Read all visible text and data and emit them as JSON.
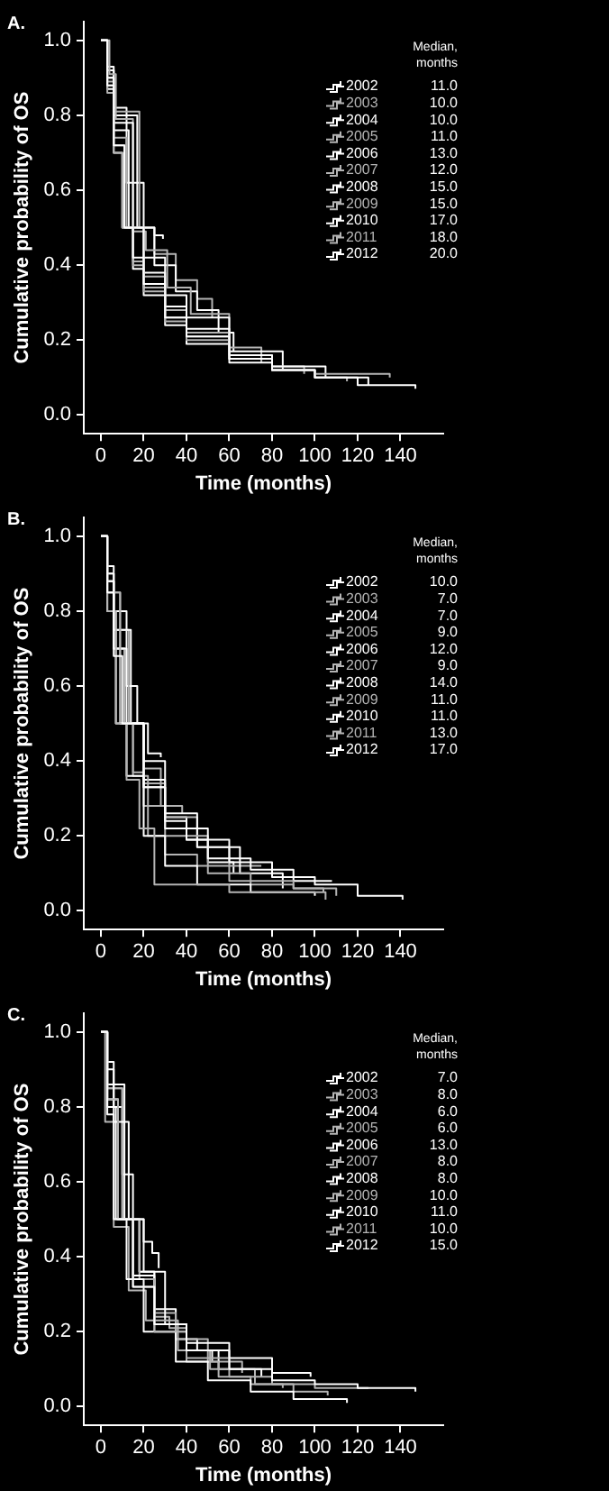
{
  "chart_data": [
    {
      "type": "step",
      "title": "A.",
      "xlabel": "Time (months)",
      "ylabel": "Cumulative probability of OS",
      "legend": "top right",
      "legend_title": "Median, months",
      "grid": false,
      "marker": "none",
      "xlim": [
        -8,
        160
      ],
      "ylim": [
        -0.05,
        1.05
      ],
      "xticks": [
        0,
        20,
        40,
        60,
        80,
        100,
        120,
        140
      ],
      "yticks": [
        {
          "value": 0,
          "label": "0.0"
        },
        {
          "value": 0.2,
          "label": "0.2"
        },
        {
          "value": 0.4,
          "label": "0.4"
        },
        {
          "value": 0.6,
          "label": "0.6"
        },
        {
          "value": 0.8,
          "label": "0.8"
        },
        {
          "value": 1,
          "label": "1.0"
        }
      ],
      "annotations": [
        "11.0",
        "10.0",
        "10.0",
        "11.0",
        "13.0",
        "12.0",
        "15.0",
        "15.0",
        "17.0",
        "18.0",
        "20.0"
      ],
      "series": [
        {
          "name": "2002",
          "color": "#ffffff",
          "x": [
            0,
            3,
            6,
            11,
            15,
            20,
            30,
            40,
            60,
            80,
            100,
            120,
            147
          ],
          "values": [
            1,
            0.88,
            0.72,
            0.5,
            0.42,
            0.35,
            0.26,
            0.21,
            0.15,
            0.12,
            0.1,
            0.08,
            0.07
          ]
        },
        {
          "name": "2003",
          "color": "#b4b4b4",
          "x": [
            0,
            3,
            6,
            10,
            15,
            20,
            30,
            40,
            60,
            80,
            100,
            135
          ],
          "values": [
            1,
            0.86,
            0.7,
            0.5,
            0.4,
            0.33,
            0.25,
            0.2,
            0.15,
            0.12,
            0.11,
            0.1
          ]
        },
        {
          "name": "2004",
          "color": "#ffffff",
          "x": [
            0,
            3,
            6,
            10,
            15,
            20,
            30,
            40,
            60,
            80,
            100,
            125
          ],
          "values": [
            1,
            0.87,
            0.7,
            0.5,
            0.39,
            0.32,
            0.24,
            0.19,
            0.14,
            0.12,
            0.1,
            0.08
          ]
        },
        {
          "name": "2005",
          "color": "#b4b4b4",
          "x": [
            0,
            3,
            6,
            11,
            15,
            20,
            30,
            40,
            60,
            80,
            100,
            115
          ],
          "values": [
            1,
            0.88,
            0.72,
            0.5,
            0.41,
            0.34,
            0.26,
            0.21,
            0.15,
            0.12,
            0.1,
            0.09
          ]
        },
        {
          "name": "2006",
          "color": "#ffffff",
          "x": [
            0,
            3,
            6,
            13,
            20,
            30,
            40,
            60,
            80,
            105
          ],
          "values": [
            1,
            0.9,
            0.76,
            0.5,
            0.38,
            0.29,
            0.23,
            0.16,
            0.13,
            0.1
          ]
        },
        {
          "name": "2007",
          "color": "#b4b4b4",
          "x": [
            0,
            3,
            6,
            12,
            20,
            30,
            40,
            60,
            80,
            95
          ],
          "values": [
            1,
            0.89,
            0.74,
            0.5,
            0.37,
            0.28,
            0.22,
            0.16,
            0.13,
            0.11
          ]
        },
        {
          "name": "2008",
          "color": "#ffffff",
          "x": [
            0,
            3,
            6,
            15,
            20,
            30,
            40,
            60,
            85
          ],
          "values": [
            1,
            0.9,
            0.78,
            0.5,
            0.42,
            0.32,
            0.26,
            0.17,
            0.12
          ]
        },
        {
          "name": "2009",
          "color": "#b4b4b4",
          "x": [
            0,
            4,
            7,
            15,
            21,
            31,
            42,
            60,
            75
          ],
          "values": [
            1,
            0.91,
            0.79,
            0.49,
            0.44,
            0.34,
            0.27,
            0.18,
            0.14
          ]
        },
        {
          "name": "2010",
          "color": "#ffffff",
          "x": [
            0,
            3,
            6,
            17,
            25,
            35,
            45,
            55,
            62
          ],
          "values": [
            1,
            0.92,
            0.8,
            0.5,
            0.4,
            0.33,
            0.28,
            0.22,
            0.17
          ]
        },
        {
          "name": "2011",
          "color": "#b4b4b4",
          "x": [
            0,
            3,
            6,
            18,
            25,
            35,
            45,
            52
          ],
          "values": [
            1,
            0.92,
            0.81,
            0.5,
            0.43,
            0.36,
            0.31,
            0.26
          ]
        },
        {
          "name": "2012",
          "color": "#ffffff",
          "x": [
            0,
            3,
            6,
            12,
            20,
            25,
            29
          ],
          "values": [
            1,
            0.93,
            0.82,
            0.62,
            0.5,
            0.48,
            0.47
          ]
        }
      ]
    },
    {
      "type": "step",
      "title": "B.",
      "xlabel": "Time (months)",
      "ylabel": "Cumulative probability of OS",
      "legend": "top right",
      "legend_title": "Median, months",
      "grid": false,
      "marker": "none",
      "xlim": [
        -8,
        160
      ],
      "ylim": [
        -0.05,
        1.05
      ],
      "xticks": [
        0,
        20,
        40,
        60,
        80,
        100,
        120,
        140
      ],
      "yticks": [
        {
          "value": 0,
          "label": "0.0"
        },
        {
          "value": 0.2,
          "label": "0.2"
        },
        {
          "value": 0.4,
          "label": "0.4"
        },
        {
          "value": 0.6,
          "label": "0.6"
        },
        {
          "value": 0.8,
          "label": "0.8"
        },
        {
          "value": 1,
          "label": "1.0"
        }
      ],
      "annotations": [
        "10.0",
        "7.0",
        "7.0",
        "9.0",
        "12.0",
        "9.0",
        "14.0",
        "11.0",
        "11.0",
        "13.0",
        "17.0"
      ],
      "series": [
        {
          "name": "2002",
          "color": "#ffffff",
          "x": [
            0,
            3,
            6,
            10,
            20,
            30,
            40,
            60,
            80,
            100,
            120,
            141
          ],
          "values": [
            1,
            0.85,
            0.68,
            0.5,
            0.33,
            0.24,
            0.19,
            0.13,
            0.09,
            0.07,
            0.04,
            0.03
          ]
        },
        {
          "name": "2003",
          "color": "#b4b4b4",
          "x": [
            0,
            3,
            7,
            12,
            18,
            25,
            40,
            60,
            80,
            105
          ],
          "values": [
            1,
            0.8,
            0.5,
            0.35,
            0.22,
            0.07,
            0.07,
            0.05,
            0.05,
            0.03
          ]
        },
        {
          "name": "2004",
          "color": "#ffffff",
          "x": [
            0,
            3,
            7,
            12,
            20,
            30,
            45,
            70,
            100
          ],
          "values": [
            1,
            0.8,
            0.5,
            0.36,
            0.2,
            0.12,
            0.07,
            0.05,
            0.04
          ]
        },
        {
          "name": "2005",
          "color": "#b4b4b4",
          "x": [
            0,
            3,
            9,
            15,
            22,
            30,
            45,
            60,
            90,
            110
          ],
          "values": [
            1,
            0.85,
            0.5,
            0.36,
            0.2,
            0.15,
            0.12,
            0.08,
            0.06,
            0.04
          ]
        },
        {
          "name": "2006",
          "color": "#ffffff",
          "x": [
            0,
            3,
            6,
            12,
            20,
            30,
            50,
            70,
            90,
            108
          ],
          "values": [
            1,
            0.88,
            0.7,
            0.5,
            0.33,
            0.22,
            0.14,
            0.11,
            0.08,
            0.08
          ]
        },
        {
          "name": "2007",
          "color": "#b4b4b4",
          "x": [
            0,
            3,
            9,
            15,
            20,
            30,
            50,
            70,
            90,
            104
          ],
          "values": [
            1,
            0.85,
            0.5,
            0.37,
            0.28,
            0.2,
            0.1,
            0.07,
            0.06,
            0.05
          ]
        },
        {
          "name": "2008",
          "color": "#ffffff",
          "x": [
            0,
            3,
            6,
            14,
            20,
            30,
            45,
            65,
            85
          ],
          "values": [
            1,
            0.9,
            0.75,
            0.5,
            0.4,
            0.26,
            0.17,
            0.1,
            0.06
          ]
        },
        {
          "name": "2009",
          "color": "#b4b4b4",
          "x": [
            0,
            3,
            6,
            11,
            20,
            30,
            45,
            60,
            75
          ],
          "values": [
            1,
            0.88,
            0.7,
            0.5,
            0.34,
            0.25,
            0.17,
            0.12,
            0.12
          ]
        },
        {
          "name": "2010",
          "color": "#ffffff",
          "x": [
            0,
            3,
            6,
            11,
            20,
            30,
            40,
            50,
            62
          ],
          "values": [
            1,
            0.88,
            0.7,
            0.5,
            0.35,
            0.25,
            0.19,
            0.13,
            0.1
          ]
        },
        {
          "name": "2011",
          "color": "#b4b4b4",
          "x": [
            0,
            3,
            6,
            13,
            20,
            28,
            38
          ],
          "values": [
            1,
            0.9,
            0.75,
            0.5,
            0.38,
            0.28,
            0.26
          ]
        },
        {
          "name": "2012",
          "color": "#ffffff",
          "x": [
            0,
            3,
            6,
            12,
            17,
            22,
            28
          ],
          "values": [
            1,
            0.92,
            0.8,
            0.6,
            0.5,
            0.42,
            0.41
          ]
        }
      ]
    },
    {
      "type": "step",
      "title": "C.",
      "xlabel": "Time (months)",
      "ylabel": "Cumulative probability of OS",
      "legend": "top right",
      "legend_title": "Median, months",
      "grid": false,
      "marker": "none",
      "xlim": [
        -8,
        160
      ],
      "ylim": [
        -0.05,
        1.05
      ],
      "xticks": [
        0,
        20,
        40,
        60,
        80,
        100,
        120,
        140
      ],
      "yticks": [
        {
          "value": 0,
          "label": "0.0"
        },
        {
          "value": 0.2,
          "label": "0.2"
        },
        {
          "value": 0.4,
          "label": "0.4"
        },
        {
          "value": 0.6,
          "label": "0.6"
        },
        {
          "value": 0.8,
          "label": "0.8"
        },
        {
          "value": 1,
          "label": "1.0"
        }
      ],
      "annotations": [
        "7.0",
        "8.0",
        "6.0",
        "6.0",
        "13.0",
        "8.0",
        "8.0",
        "10.0",
        "11.0",
        "10.0",
        "15.0"
      ],
      "series": [
        {
          "name": "2002",
          "color": "#ffffff",
          "x": [
            0,
            3,
            7,
            15,
            25,
            40,
            60,
            80,
            100,
            120,
            147
          ],
          "values": [
            1,
            0.8,
            0.5,
            0.32,
            0.22,
            0.15,
            0.1,
            0.07,
            0.06,
            0.05,
            0.04
          ]
        },
        {
          "name": "2003",
          "color": "#b4b4b4",
          "x": [
            0,
            3,
            8,
            15,
            25,
            40,
            60,
            80,
            100,
            125
          ],
          "values": [
            1,
            0.82,
            0.5,
            0.32,
            0.2,
            0.13,
            0.08,
            0.06,
            0.05,
            0.05
          ]
        },
        {
          "name": "2004",
          "color": "#ffffff",
          "x": [
            0,
            3,
            6,
            12,
            20,
            35,
            50,
            70,
            90,
            115
          ],
          "values": [
            1,
            0.78,
            0.5,
            0.34,
            0.2,
            0.12,
            0.07,
            0.04,
            0.02,
            0.01
          ]
        },
        {
          "name": "2005",
          "color": "#b4b4b4",
          "x": [
            0,
            2,
            6,
            13,
            21,
            36,
            51,
            72,
            90,
            106
          ],
          "values": [
            1,
            0.76,
            0.48,
            0.31,
            0.23,
            0.15,
            0.1,
            0.06,
            0.04,
            0.03
          ]
        },
        {
          "name": "2006",
          "color": "#ffffff",
          "x": [
            0,
            3,
            6,
            13,
            20,
            30,
            40,
            60,
            80,
            98
          ],
          "values": [
            1,
            0.9,
            0.76,
            0.5,
            0.36,
            0.22,
            0.17,
            0.13,
            0.09,
            0.08
          ]
        },
        {
          "name": "2007",
          "color": "#b4b4b4",
          "x": [
            0,
            3,
            8,
            15,
            25,
            40,
            55,
            70,
            85
          ],
          "values": [
            1,
            0.82,
            0.5,
            0.34,
            0.2,
            0.12,
            0.08,
            0.06,
            0.05
          ]
        },
        {
          "name": "2008",
          "color": "#ffffff",
          "x": [
            0,
            3,
            8,
            15,
            25,
            40,
            55,
            75
          ],
          "values": [
            1,
            0.82,
            0.5,
            0.35,
            0.22,
            0.15,
            0.1,
            0.08
          ]
        },
        {
          "name": "2009",
          "color": "#b4b4b4",
          "x": [
            0,
            3,
            10,
            18,
            25,
            35,
            50,
            66
          ],
          "values": [
            1,
            0.85,
            0.5,
            0.34,
            0.25,
            0.18,
            0.12,
            0.09
          ]
        },
        {
          "name": "2010",
          "color": "#ffffff",
          "x": [
            0,
            3,
            11,
            18,
            25,
            35,
            45,
            52
          ],
          "values": [
            1,
            0.86,
            0.5,
            0.36,
            0.26,
            0.18,
            0.15,
            0.12
          ]
        },
        {
          "name": "2011",
          "color": "#b4b4b4",
          "x": [
            0,
            3,
            10,
            18,
            25,
            32,
            40
          ],
          "values": [
            1,
            0.85,
            0.5,
            0.36,
            0.24,
            0.21,
            0.21
          ]
        },
        {
          "name": "2012",
          "color": "#ffffff",
          "x": [
            0,
            3,
            6,
            10,
            15,
            20,
            24,
            27
          ],
          "values": [
            1,
            0.92,
            0.8,
            0.62,
            0.5,
            0.44,
            0.41,
            0.37
          ]
        }
      ]
    }
  ]
}
